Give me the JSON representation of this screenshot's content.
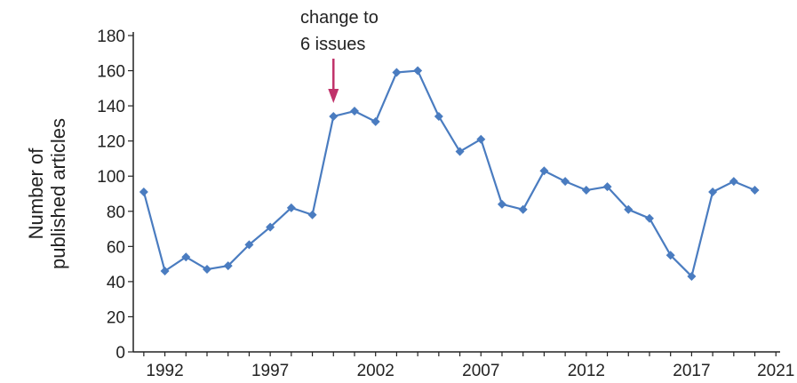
{
  "chart_data": {
    "type": "line",
    "title": "",
    "xlabel": "",
    "ylabel": "Number of published articles",
    "ylabel_lines": [
      "Number of",
      "published articles"
    ],
    "x": [
      1991,
      1992,
      1993,
      1994,
      1995,
      1996,
      1997,
      1998,
      1999,
      2000,
      2001,
      2002,
      2003,
      2004,
      2005,
      2006,
      2007,
      2008,
      2009,
      2010,
      2011,
      2012,
      2013,
      2014,
      2015,
      2016,
      2017,
      2018,
      2019,
      2020
    ],
    "series": [
      {
        "values": [
          91,
          46,
          54,
          47,
          49,
          61,
          71,
          82,
          78,
          134,
          137,
          131,
          159,
          160,
          134,
          114,
          121,
          84,
          81,
          103,
          97,
          92,
          94,
          81,
          76,
          55,
          43,
          91,
          97,
          92
        ]
      }
    ],
    "xlim": [
      1990.5,
      2021.2
    ],
    "ylim": [
      0,
      180
    ],
    "x_ticks": [
      1992,
      1997,
      2002,
      2007,
      2012,
      2017,
      2021
    ],
    "y_ticks": [
      0,
      20,
      40,
      60,
      80,
      100,
      120,
      140,
      160,
      180
    ],
    "annotation": {
      "text_lines": [
        "change to",
        "6 issues"
      ],
      "x": 2000
    },
    "grid": false,
    "legend": "none"
  },
  "colors": {
    "series": "#4a7cc0",
    "arrow": "#c0326a",
    "axis": "#222222"
  }
}
